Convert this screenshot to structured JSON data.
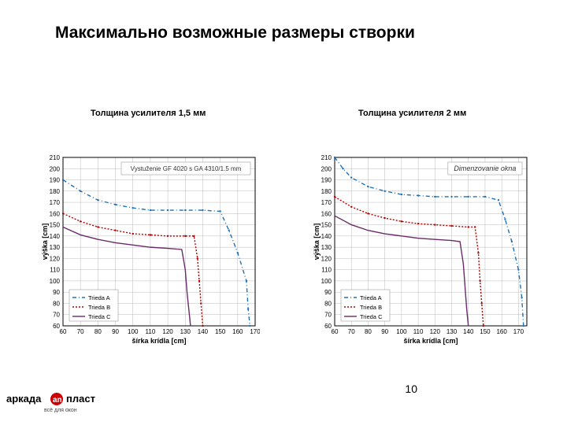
{
  "title": "Максимально возможные размеры створки",
  "subtitle_left": "Толщина усилителя 1,5 мм",
  "subtitle_right": "Толщина усилителя 2 мм",
  "page_number": "10",
  "logo": {
    "brand_left": "аркада",
    "brand_right": "пласт",
    "tagline": "всё для окон",
    "accent": "#cc0000",
    "text_color": "#000000"
  },
  "xaxis": {
    "label": "šírka krídla [cm]",
    "min": 60,
    "max": 170,
    "step": 10
  },
  "yaxis": {
    "label": "výška [cm]",
    "min": 60,
    "max": 210,
    "step": 10
  },
  "grid_color": "#bbbbbb",
  "border_color": "#000000",
  "charts": [
    {
      "id": "chart-left",
      "box_text": "Vystuženie GF 4020 s GA 4310/1.5 mm",
      "box_text_fontsize": 8,
      "x_max": 170,
      "legend_items": [
        {
          "label": "Trieda A",
          "color": "#1f71b8",
          "dash": "5 3 1 3"
        },
        {
          "label": "Trieda B",
          "color": "#b50000",
          "dash": "2 2"
        },
        {
          "label": "Trieda C",
          "color": "#6a2b6a",
          "dash": ""
        }
      ],
      "series": [
        {
          "color": "#1f71b8",
          "dash": "5 3 1 3",
          "width": 1.4,
          "points": [
            [
              60,
              190
            ],
            [
              70,
              180
            ],
            [
              80,
              172
            ],
            [
              90,
              168
            ],
            [
              100,
              165
            ],
            [
              110,
              163
            ],
            [
              120,
              163
            ],
            [
              130,
              163
            ],
            [
              140,
              163
            ],
            [
              150,
              162
            ],
            [
              155,
              145
            ],
            [
              160,
              125
            ],
            [
              165,
              100
            ],
            [
              166,
              75
            ],
            [
              167,
              60
            ]
          ]
        },
        {
          "color": "#b50000",
          "dash": "2 2",
          "width": 1.4,
          "points": [
            [
              60,
              160
            ],
            [
              70,
              153
            ],
            [
              80,
              148
            ],
            [
              90,
              145
            ],
            [
              100,
              142
            ],
            [
              110,
              141
            ],
            [
              120,
              140
            ],
            [
              130,
              140
            ],
            [
              135,
              140
            ],
            [
              137,
              120
            ],
            [
              138,
              100
            ],
            [
              139,
              80
            ],
            [
              140,
              60
            ]
          ]
        },
        {
          "color": "#6a2b6a",
          "dash": "",
          "width": 1.4,
          "points": [
            [
              60,
              148
            ],
            [
              70,
              141
            ],
            [
              80,
              137
            ],
            [
              90,
              134
            ],
            [
              100,
              132
            ],
            [
              110,
              130
            ],
            [
              120,
              129
            ],
            [
              128,
              128
            ],
            [
              130,
              110
            ],
            [
              131,
              90
            ],
            [
              132,
              75
            ],
            [
              133,
              60
            ]
          ]
        }
      ]
    },
    {
      "id": "chart-right",
      "box_text": "Dimenzovanie okna",
      "box_text_fontsize": 9,
      "box_text_italic": true,
      "x_max": 175,
      "legend_items": [
        {
          "label": "Trieda A",
          "color": "#1f71b8",
          "dash": "5 3 1 3"
        },
        {
          "label": "Trieda B",
          "color": "#b50000",
          "dash": "2 2"
        },
        {
          "label": "Trieda C",
          "color": "#6a2b6a",
          "dash": ""
        }
      ],
      "series": [
        {
          "color": "#1f71b8",
          "dash": "5 3 1 3",
          "width": 1.4,
          "points": [
            [
              60,
              210
            ],
            [
              65,
              200
            ],
            [
              70,
              192
            ],
            [
              80,
              184
            ],
            [
              90,
              180
            ],
            [
              100,
              177
            ],
            [
              110,
              176
            ],
            [
              120,
              175
            ],
            [
              130,
              175
            ],
            [
              140,
              175
            ],
            [
              150,
              175
            ],
            [
              158,
              172
            ],
            [
              162,
              155
            ],
            [
              166,
              135
            ],
            [
              170,
              110
            ],
            [
              172,
              85
            ],
            [
              173,
              60
            ]
          ]
        },
        {
          "color": "#b50000",
          "dash": "2 2",
          "width": 1.4,
          "points": [
            [
              60,
              175
            ],
            [
              70,
              166
            ],
            [
              80,
              160
            ],
            [
              90,
              156
            ],
            [
              100,
              153
            ],
            [
              110,
              151
            ],
            [
              120,
              150
            ],
            [
              130,
              149
            ],
            [
              140,
              148
            ],
            [
              144,
              148
            ],
            [
              146,
              125
            ],
            [
              147,
              100
            ],
            [
              148,
              80
            ],
            [
              149,
              60
            ]
          ]
        },
        {
          "color": "#6a2b6a",
          "dash": "",
          "width": 1.4,
          "points": [
            [
              60,
              158
            ],
            [
              70,
              150
            ],
            [
              80,
              145
            ],
            [
              90,
              142
            ],
            [
              100,
              140
            ],
            [
              110,
              138
            ],
            [
              120,
              137
            ],
            [
              130,
              136
            ],
            [
              135,
              135
            ],
            [
              137,
              115
            ],
            [
              138,
              95
            ],
            [
              139,
              75
            ],
            [
              140,
              60
            ]
          ]
        }
      ]
    }
  ]
}
